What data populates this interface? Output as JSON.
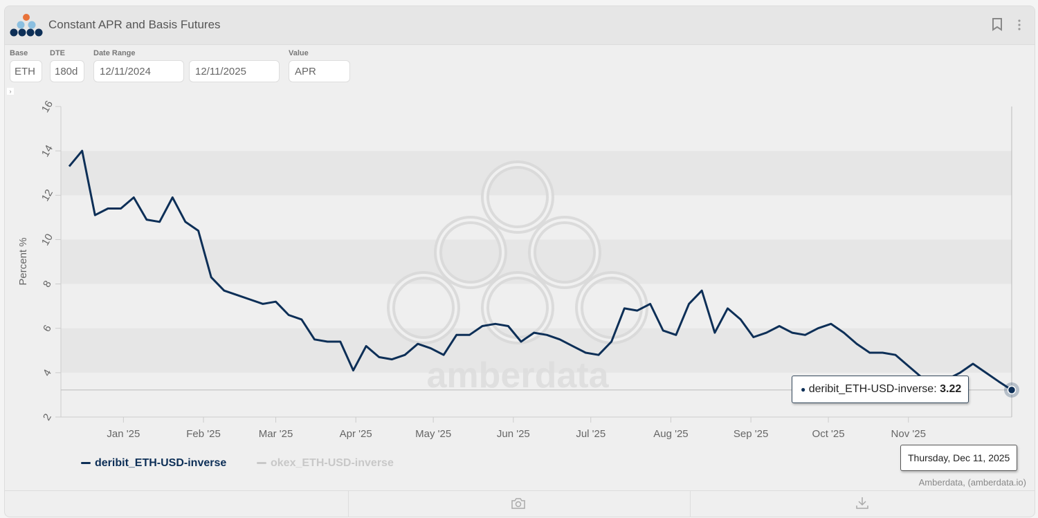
{
  "header": {
    "title": "Constant APR and Basis Futures",
    "bookmark_icon": "bookmark-icon",
    "menu_icon": "more-vertical-icon"
  },
  "controls": {
    "base": {
      "label": "Base",
      "value": "ETH"
    },
    "dte": {
      "label": "DTE",
      "value": "180d"
    },
    "date_range": {
      "label": "Date Range",
      "start": "12/11/2024",
      "end": "12/11/2025"
    },
    "value": {
      "label": "Value",
      "value": "APR"
    },
    "collapse_glyph": "›"
  },
  "colors": {
    "series": "#0d2f57",
    "disabled": "#c8c8c8",
    "logo_orange": "#e8733a",
    "logo_light": "#8bbfe0"
  },
  "chart_data": {
    "type": "line",
    "title": "",
    "ylabel": "Percent %",
    "xlabel": "",
    "ylim": [
      2,
      16
    ],
    "yticks": [
      2,
      4,
      6,
      8,
      10,
      12,
      14,
      16
    ],
    "xlim": [
      "2024-12-11",
      "2025-12-11"
    ],
    "xticks": [
      {
        "date": "2025-01-01",
        "label": "Jan '25"
      },
      {
        "date": "2025-02-01",
        "label": "Feb '25"
      },
      {
        "date": "2025-03-01",
        "label": "Mar '25"
      },
      {
        "date": "2025-04-01",
        "label": "Apr '25"
      },
      {
        "date": "2025-05-01",
        "label": "May '25"
      },
      {
        "date": "2025-06-01",
        "label": "Jun '25"
      },
      {
        "date": "2025-07-01",
        "label": "Jul '25"
      },
      {
        "date": "2025-08-01",
        "label": "Aug '25"
      },
      {
        "date": "2025-09-01",
        "label": "Sep '25"
      },
      {
        "date": "2025-10-01",
        "label": "Oct '25"
      },
      {
        "date": "2025-11-01",
        "label": "Nov '25"
      }
    ],
    "grid": "alternating bands",
    "legend_placement": "bottom-left",
    "series": [
      {
        "name": "deribit_ETH-USD-inverse",
        "color": "#0d2f57",
        "visible": true,
        "x": [
          "2024-12-11",
          "2024-12-16",
          "2024-12-21",
          "2024-12-26",
          "2024-12-31",
          "2025-01-05",
          "2025-01-10",
          "2025-01-15",
          "2025-01-20",
          "2025-01-25",
          "2025-01-30",
          "2025-02-04",
          "2025-02-09",
          "2025-02-14",
          "2025-02-19",
          "2025-02-24",
          "2025-03-01",
          "2025-03-06",
          "2025-03-11",
          "2025-03-16",
          "2025-03-21",
          "2025-03-26",
          "2025-03-31",
          "2025-04-05",
          "2025-04-10",
          "2025-04-15",
          "2025-04-20",
          "2025-04-25",
          "2025-04-30",
          "2025-05-05",
          "2025-05-10",
          "2025-05-15",
          "2025-05-20",
          "2025-05-25",
          "2025-05-30",
          "2025-06-04",
          "2025-06-09",
          "2025-06-14",
          "2025-06-19",
          "2025-06-24",
          "2025-06-29",
          "2025-07-04",
          "2025-07-09",
          "2025-07-14",
          "2025-07-19",
          "2025-07-24",
          "2025-07-29",
          "2025-08-03",
          "2025-08-08",
          "2025-08-13",
          "2025-08-18",
          "2025-08-23",
          "2025-08-28",
          "2025-09-02",
          "2025-09-07",
          "2025-09-12",
          "2025-09-17",
          "2025-09-22",
          "2025-09-27",
          "2025-10-02",
          "2025-10-07",
          "2025-10-12",
          "2025-10-17",
          "2025-10-22",
          "2025-10-27",
          "2025-11-01",
          "2025-11-06",
          "2025-11-11",
          "2025-11-16",
          "2025-11-21",
          "2025-11-26",
          "2025-12-01",
          "2025-12-06",
          "2025-12-11"
        ],
        "y": [
          13.3,
          14.0,
          11.1,
          11.4,
          11.4,
          11.9,
          10.9,
          10.8,
          11.9,
          10.8,
          10.4,
          8.3,
          7.7,
          7.5,
          7.3,
          7.1,
          7.2,
          6.6,
          6.4,
          5.5,
          5.4,
          5.4,
          4.1,
          5.2,
          4.7,
          4.6,
          4.8,
          5.3,
          5.1,
          4.8,
          5.7,
          5.7,
          6.1,
          6.2,
          6.1,
          5.4,
          5.8,
          5.7,
          5.5,
          5.2,
          4.9,
          4.8,
          5.4,
          6.9,
          6.8,
          7.1,
          5.9,
          5.7,
          7.1,
          7.7,
          5.8,
          6.9,
          6.4,
          5.6,
          5.8,
          6.1,
          5.8,
          5.7,
          6.0,
          6.2,
          5.8,
          5.3,
          4.9,
          4.9,
          4.8,
          4.3,
          3.8,
          3.8,
          3.7,
          4.0,
          4.4,
          4.0,
          3.6,
          3.22
        ]
      },
      {
        "name": "okex_ETH-USD-inverse",
        "color": "#c8c8c8",
        "visible": false,
        "x": [],
        "y": []
      }
    ],
    "tooltip": {
      "series": "deribit_ETH-USD-inverse",
      "value": "3.22",
      "date": "Thursday, Dec 11, 2025",
      "label_prefix": "deribit_ETH-USD-inverse: "
    },
    "watermark": "amberdata"
  },
  "credit": "Amberdata, (amberdata.io)",
  "footer": {
    "camera_icon": "camera-icon",
    "download_icon": "download-icon"
  }
}
